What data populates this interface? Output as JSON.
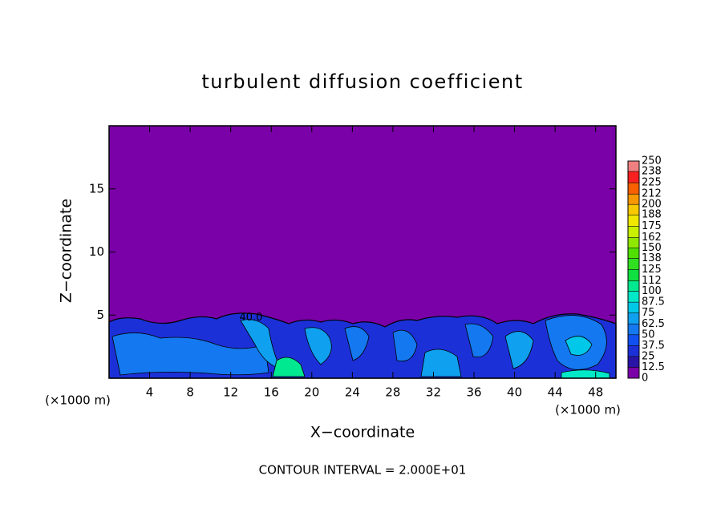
{
  "chart_data": {
    "type": "contour",
    "title": "turbulent diffusion coefficient",
    "x_label": "X−coordinate",
    "y_label": "Z−coordinate",
    "x_unit": "(×1000 m)",
    "y_unit": "(×1000 m)",
    "footnote": "CONTOUR INTERVAL = 2.000E+01",
    "xlim": [
      0,
      50
    ],
    "ylim": [
      0,
      20
    ],
    "xticks": [
      4,
      8,
      12,
      16,
      20,
      24,
      28,
      32,
      36,
      40,
      44,
      48
    ],
    "yticks": [
      5,
      10,
      15
    ],
    "annotations": [
      {
        "text": "40.0",
        "x": 14,
        "z": 4.8
      }
    ],
    "colorbar": {
      "levels": [
        0,
        12.5,
        25,
        37.5,
        50,
        62.5,
        75,
        87.5,
        100,
        112,
        125,
        138,
        150,
        162,
        175,
        188,
        200,
        212,
        225,
        238,
        250
      ],
      "colors": [
        "#7a00a8",
        "#2a14a8",
        "#1c30d8",
        "#1050f0",
        "#1478f0",
        "#10a0f0",
        "#00c8e8",
        "#00e8c8",
        "#00e890",
        "#10e040",
        "#30e020",
        "#50e000",
        "#90e800",
        "#c8f000",
        "#f0e800",
        "#f8c800",
        "#f89800",
        "#f86000",
        "#f82020",
        "#f08080"
      ]
    }
  }
}
